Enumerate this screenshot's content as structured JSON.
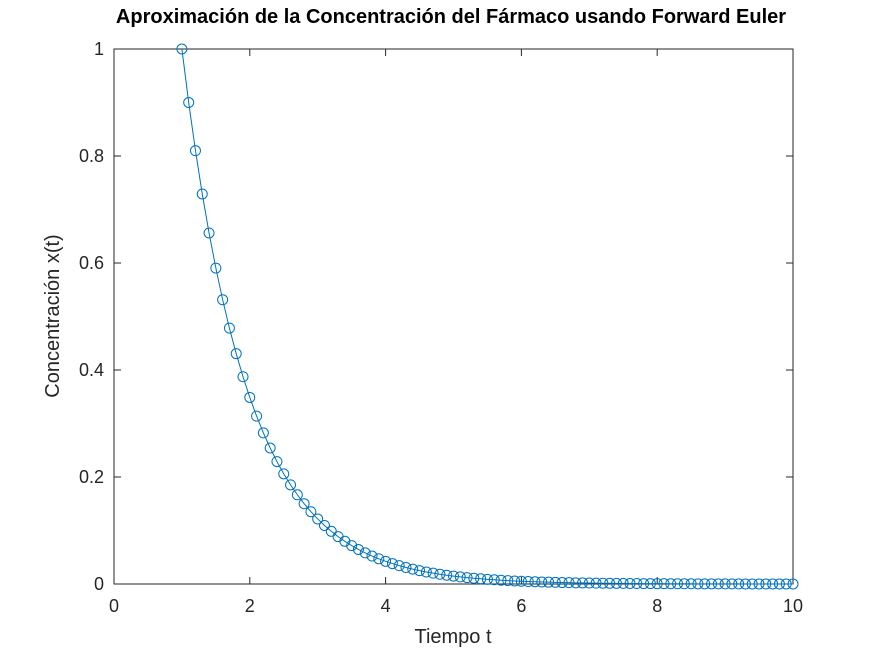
{
  "chart_data": {
    "type": "line",
    "title": "Aproximación de la Concentración del Fármaco usando Forward Euler",
    "xlabel": "Tiempo t",
    "ylabel": "Concentración x(t)",
    "xlim": [
      0,
      10
    ],
    "ylim": [
      0,
      1
    ],
    "xticks": [
      0,
      2,
      4,
      6,
      8,
      10
    ],
    "yticks": [
      0,
      0.2,
      0.4,
      0.6,
      0.8,
      1
    ],
    "xtick_labels": [
      "0",
      "2",
      "4",
      "6",
      "8",
      "10"
    ],
    "ytick_labels": [
      "0",
      "0.2",
      "0.4",
      "0.6",
      "0.8",
      "1"
    ],
    "grid": false,
    "legend": "none",
    "marker": "circle",
    "color": "#0072bd",
    "x": [
      1.0,
      1.1,
      1.2,
      1.3,
      1.4,
      1.5,
      1.6,
      1.7,
      1.8,
      1.9,
      2.0,
      2.1,
      2.2,
      2.3,
      2.4,
      2.5,
      2.6,
      2.7,
      2.8,
      2.9,
      3.0,
      3.1,
      3.2,
      3.3,
      3.4,
      3.5,
      3.6,
      3.7,
      3.8,
      3.9,
      4.0,
      4.1,
      4.2,
      4.3,
      4.4,
      4.5,
      4.6,
      4.7,
      4.8,
      4.9,
      5.0,
      5.1,
      5.2,
      5.3,
      5.4,
      5.5,
      5.6,
      5.7,
      5.8,
      5.9,
      6.0,
      6.1,
      6.2,
      6.3,
      6.4,
      6.5,
      6.6,
      6.7,
      6.8,
      6.9,
      7.0,
      7.1,
      7.2,
      7.3,
      7.4,
      7.5,
      7.6,
      7.7,
      7.8,
      7.9,
      8.0,
      8.1,
      8.2,
      8.3,
      8.4,
      8.5,
      8.6,
      8.7,
      8.8,
      8.9,
      9.0,
      9.1,
      9.2,
      9.3,
      9.4,
      9.5,
      9.6,
      9.7,
      9.8,
      9.9,
      10.0
    ],
    "y": [
      1.0,
      0.9,
      0.81,
      0.729,
      0.6561,
      0.5905,
      0.5314,
      0.4783,
      0.4305,
      0.3874,
      0.3487,
      0.3138,
      0.2824,
      0.2542,
      0.2288,
      0.2059,
      0.1853,
      0.1668,
      0.1501,
      0.1351,
      0.1216,
      0.1094,
      0.0985,
      0.0886,
      0.0798,
      0.0718,
      0.0646,
      0.0581,
      0.0523,
      0.0471,
      0.0424,
      0.0382,
      0.0343,
      0.0309,
      0.0278,
      0.025,
      0.0225,
      0.0203,
      0.0182,
      0.0164,
      0.0148,
      0.0133,
      0.012,
      0.0108,
      0.0097,
      0.0087,
      0.0079,
      0.0071,
      0.0064,
      0.0057,
      0.0052,
      0.0046,
      0.0042,
      0.0038,
      0.0034,
      0.0031,
      0.0027,
      0.0025,
      0.0022,
      0.002,
      0.0018,
      0.0016,
      0.0015,
      0.0013,
      0.0012,
      0.0011,
      0.001,
      0.0009,
      0.0008,
      0.0007,
      0.0006,
      0.0006,
      0.0005,
      0.0005,
      0.0004,
      0.0004,
      0.0003,
      0.0003,
      0.0003,
      0.0002,
      0.0002,
      0.0002,
      0.0002,
      0.0001,
      0.0001,
      0.0001,
      0.0001,
      0.0001,
      0.0001,
      0.0001,
      0.0001
    ]
  }
}
